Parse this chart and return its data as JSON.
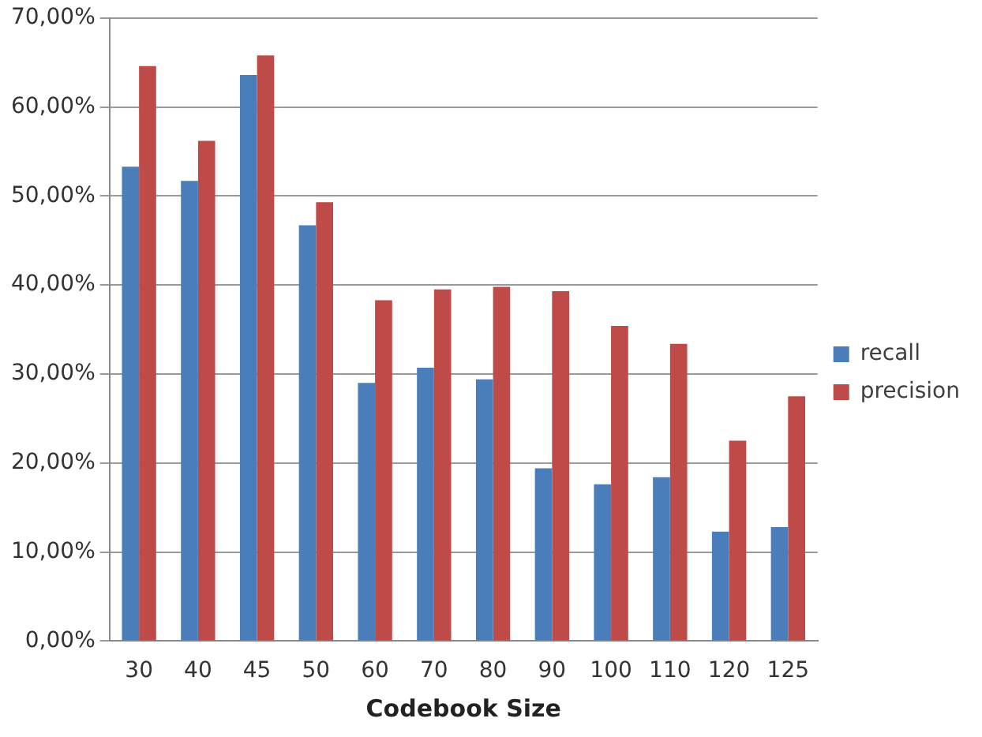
{
  "chart_data": {
    "type": "bar",
    "xlabel": "Codebook Size",
    "categories": [
      "30",
      "40",
      "45",
      "50",
      "60",
      "70",
      "80",
      "90",
      "100",
      "110",
      "120",
      "125"
    ],
    "series": [
      {
        "name": "recall",
        "color": "#4a7ebb",
        "values": [
          53.3,
          51.7,
          63.6,
          46.7,
          29.0,
          30.7,
          29.4,
          19.4,
          17.6,
          18.4,
          12.3,
          12.8
        ]
      },
      {
        "name": "precision",
        "color": "#be4b48",
        "values": [
          64.6,
          56.2,
          65.8,
          49.3,
          38.3,
          39.5,
          39.8,
          39.3,
          35.4,
          33.4,
          22.5,
          27.5
        ]
      }
    ],
    "ylim": [
      0,
      70
    ],
    "yticks": [
      {
        "value": 0,
        "label": "0,00%"
      },
      {
        "value": 10,
        "label": "10,00%"
      },
      {
        "value": 20,
        "label": "20,00%"
      },
      {
        "value": 30,
        "label": "30,00%"
      },
      {
        "value": 40,
        "label": "40,00%"
      },
      {
        "value": 50,
        "label": "50,00%"
      },
      {
        "value": 60,
        "label": "60,00%"
      },
      {
        "value": 70,
        "label": "70,00%"
      }
    ],
    "grid": "y",
    "legend": "right"
  }
}
